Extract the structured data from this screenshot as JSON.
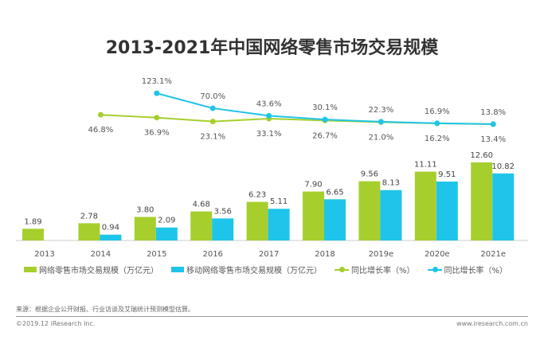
{
  "chart_data": {
    "type": "bar",
    "title": "2013-2021年中国网络零售市场交易规模",
    "categories": [
      "2013",
      "2014",
      "2015",
      "2016",
      "2017",
      "2018",
      "2019e",
      "2020e",
      "2021e"
    ],
    "series": [
      {
        "name": "网络零售市场交易规模（万亿元）",
        "type": "bar",
        "color": "#a6cf2e",
        "values": [
          1.89,
          2.78,
          3.8,
          4.68,
          6.23,
          7.9,
          9.56,
          11.11,
          12.6
        ],
        "labels": [
          "1.89",
          "2.78",
          "3.80",
          "4.68",
          "6.23",
          "7.90",
          "9.56",
          "11.11",
          "12.60"
        ]
      },
      {
        "name": "移动网络零售市场交易规模（万亿元）",
        "type": "bar",
        "color": "#1fc4ea",
        "values": [
          null,
          0.94,
          2.09,
          3.56,
          5.11,
          6.65,
          8.13,
          9.51,
          10.82
        ],
        "labels": [
          "",
          "0.94",
          "2.09",
          "3.56",
          "5.11",
          "6.65",
          "8.13",
          "9.51",
          "10.82"
        ]
      },
      {
        "name": "同比增长率（%）",
        "type": "line",
        "color": "#a6cf2e",
        "values": [
          null,
          46.8,
          36.9,
          23.1,
          33.1,
          26.7,
          21.0,
          16.2,
          13.4
        ],
        "labels": [
          "",
          "46.8%",
          "36.9%",
          "23.1%",
          "33.1%",
          "26.7%",
          "21.0%",
          "16.2%",
          "13.4%"
        ]
      },
      {
        "name": "同比增长率（%）",
        "type": "line",
        "color": "#1fc4ea",
        "values": [
          null,
          null,
          123.1,
          70.0,
          43.6,
          30.1,
          22.3,
          16.9,
          13.8
        ],
        "labels": [
          "",
          "",
          "123.1%",
          "70.0%",
          "43.6%",
          "30.1%",
          "22.3%",
          "16.9%",
          "13.8%"
        ]
      }
    ],
    "legend": "bottom",
    "grid": false
  },
  "footer": {
    "source": "来源：根据企业公开财报、行业访谈及艾瑞统计预测模型估算。",
    "copyright": "©2019.12 iResearch Inc.",
    "website": "www.iresearch.com.cn"
  }
}
